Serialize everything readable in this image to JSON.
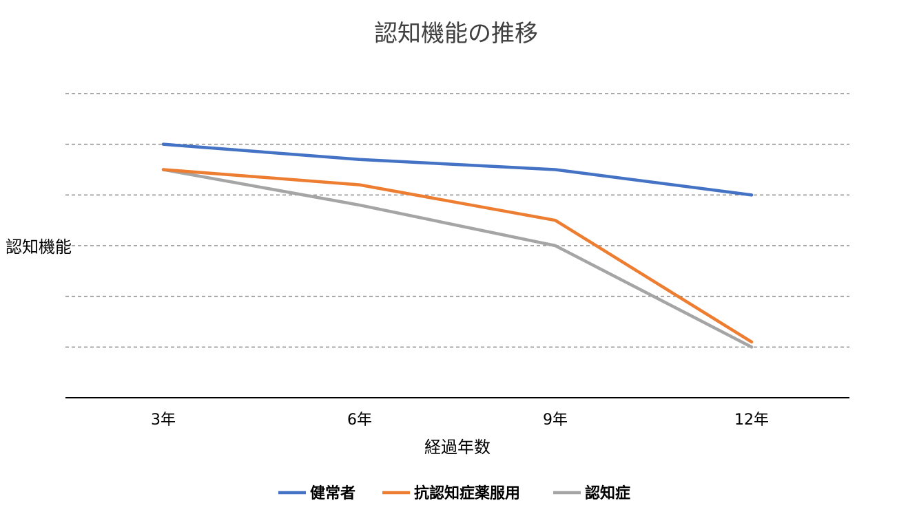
{
  "chart_data": {
    "type": "line",
    "title": "認知機能の推移",
    "xlabel": "経過年数",
    "ylabel": "認知機能",
    "categories": [
      "3年",
      "6年",
      "9年",
      "12年"
    ],
    "ylim": [
      0,
      6
    ],
    "y_ticks_shown": false,
    "grid": "horizontal dashed",
    "legend": "bottom",
    "series": [
      {
        "name": "健常者",
        "color": "#4472C4",
        "values": [
          5.0,
          4.7,
          4.5,
          4.0
        ]
      },
      {
        "name": "抗認知症薬服用",
        "color": "#ED7D31",
        "values": [
          4.5,
          4.2,
          3.5,
          1.1
        ]
      },
      {
        "name": "認知症",
        "color": "#A5A5A5",
        "values": [
          4.5,
          3.8,
          3.0,
          1.0
        ]
      }
    ]
  }
}
